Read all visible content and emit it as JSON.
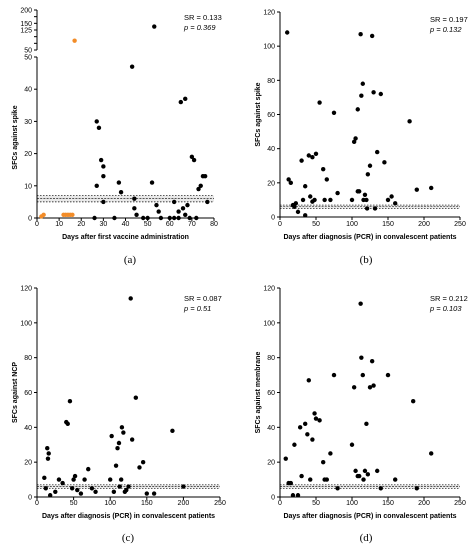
{
  "chart_data": [
    {
      "type": "scatter",
      "panel_label": "(a)",
      "xlabel": "Days after first vaccine administration",
      "ylabel": "SFCs against spike",
      "xlim": [
        0,
        80
      ],
      "xticks": [
        0,
        10,
        20,
        30,
        40,
        50,
        60,
        70,
        80
      ],
      "y_broken": true,
      "ylim_lower": [
        0,
        50
      ],
      "yticks_lower": [
        0,
        10,
        20,
        30,
        40,
        50
      ],
      "ylim_upper": [
        50,
        200
      ],
      "yticks_upper": [
        50,
        75,
        100,
        125,
        150,
        175,
        200
      ],
      "ytick_labels_upper": [
        "50",
        "",
        "",
        "125",
        "150",
        "",
        "200"
      ],
      "stats": {
        "sr": "SR = 0.133",
        "p": "p = 0.369"
      },
      "band": [
        5,
        7
      ],
      "band_line": 6,
      "series": [
        {
          "color": "#000000",
          "x": [
            27,
            28,
            29,
            30,
            30,
            30,
            27,
            26,
            37,
            38,
            43,
            44,
            44,
            48,
            50,
            52,
            53,
            54,
            55,
            56,
            60,
            62,
            64,
            65,
            66,
            67,
            67,
            68,
            69,
            70,
            71,
            72,
            73,
            74,
            75,
            76,
            77,
            35,
            45,
            62,
            64
          ],
          "y": [
            30,
            28,
            18,
            16,
            13,
            5,
            10,
            0,
            11,
            8,
            47,
            6,
            3,
            0,
            0,
            11,
            138,
            4,
            2,
            0,
            0,
            5,
            2,
            36,
            3,
            1,
            37,
            4,
            0,
            19,
            18,
            0,
            9,
            10,
            13,
            13,
            5,
            0,
            1,
            0,
            0
          ]
        },
        {
          "color": "#f28c28",
          "x": [
            2,
            3,
            12,
            13,
            14,
            15,
            16,
            17
          ],
          "y": [
            0.5,
            1,
            1,
            1,
            1,
            1,
            1,
            85
          ]
        }
      ]
    },
    {
      "type": "scatter",
      "panel_label": "(b)",
      "xlabel": "Days after diagnosis (PCR) in convalescent patients",
      "ylabel": "SFCs against spike",
      "xlim": [
        0,
        250
      ],
      "xticks": [
        0,
        50,
        100,
        150,
        200,
        250
      ],
      "ylim": [
        0,
        120
      ],
      "yticks": [
        0,
        20,
        40,
        60,
        80,
        100,
        120
      ],
      "stats": {
        "sr": "SR = 0.197",
        "p": "p = 0.132"
      },
      "band": [
        5,
        7
      ],
      "band_line": 6,
      "series": [
        {
          "color": "#000000",
          "x": [
            10,
            12,
            15,
            18,
            20,
            22,
            25,
            30,
            32,
            35,
            40,
            42,
            45,
            48,
            50,
            55,
            60,
            62,
            65,
            70,
            75,
            80,
            100,
            103,
            105,
            108,
            110,
            112,
            113,
            115,
            116,
            118,
            120,
            121,
            122,
            125,
            128,
            130,
            132,
            135,
            140,
            145,
            150,
            155,
            160,
            180,
            190,
            210,
            35,
            45,
            108
          ],
          "y": [
            108,
            22,
            20,
            7,
            6,
            8,
            3,
            33,
            10,
            1,
            36,
            12,
            35,
            10,
            37,
            67,
            28,
            10,
            22,
            10,
            61,
            14,
            10,
            44,
            46,
            15,
            15,
            107,
            71,
            78,
            10,
            13,
            10,
            5,
            25,
            30,
            106,
            73,
            5,
            38,
            72,
            32,
            10,
            12,
            8,
            56,
            16,
            17,
            18,
            9,
            63
          ]
        }
      ]
    },
    {
      "type": "scatter",
      "panel_label": "(c)",
      "xlabel": "Days after diagnosis (PCR) in convalescent patients",
      "ylabel": "SFCs against NCP",
      "xlim": [
        0,
        250
      ],
      "xticks": [
        0,
        50,
        100,
        150,
        200,
        250
      ],
      "ylim": [
        0,
        120
      ],
      "yticks": [
        0,
        20,
        40,
        60,
        80,
        100,
        120
      ],
      "stats": {
        "sr": "SR = 0.087",
        "p": "p = 0.51"
      },
      "band": [
        5,
        7
      ],
      "band_line": 6,
      "series": [
        {
          "color": "#000000",
          "x": [
            10,
            12,
            14,
            15,
            16,
            18,
            25,
            30,
            35,
            40,
            42,
            45,
            48,
            50,
            52,
            55,
            60,
            65,
            70,
            75,
            80,
            100,
            102,
            105,
            108,
            110,
            112,
            113,
            115,
            116,
            118,
            120,
            122,
            125,
            128,
            130,
            135,
            140,
            145,
            150,
            160,
            185,
            200
          ],
          "y": [
            11,
            5,
            28,
            22,
            25,
            1,
            3,
            10,
            8,
            43,
            42,
            55,
            5,
            10,
            12,
            4,
            2,
            10,
            16,
            5,
            3,
            10,
            35,
            3,
            18,
            28,
            31,
            6,
            10,
            40,
            37,
            3,
            4,
            6,
            114,
            33,
            57,
            17,
            20,
            2,
            2,
            38,
            6
          ]
        }
      ]
    },
    {
      "type": "scatter",
      "panel_label": "(d)",
      "xlabel": "Days after diagnosis (PCR) in convalescent patients",
      "ylabel": "SFCs against membrane",
      "xlim": [
        0,
        250
      ],
      "xticks": [
        0,
        50,
        100,
        150,
        200,
        250
      ],
      "ylim": [
        0,
        120
      ],
      "yticks": [
        0,
        20,
        40,
        60,
        80,
        100,
        120
      ],
      "stats": {
        "sr": "SR = 0.212",
        "p": "p = 0.103"
      },
      "band": [
        5,
        7
      ],
      "band_line": 6,
      "series": [
        {
          "color": "#000000",
          "x": [
            8,
            12,
            15,
            18,
            20,
            25,
            28,
            30,
            35,
            38,
            40,
            42,
            45,
            48,
            50,
            55,
            60,
            62,
            65,
            70,
            75,
            80,
            100,
            103,
            105,
            108,
            110,
            112,
            113,
            115,
            116,
            118,
            120,
            122,
            125,
            128,
            130,
            135,
            140,
            150,
            160,
            185,
            190,
            210
          ],
          "y": [
            22,
            8,
            8,
            1,
            30,
            1,
            40,
            12,
            42,
            36,
            67,
            10,
            33,
            48,
            45,
            44,
            20,
            10,
            10,
            25,
            70,
            5,
            30,
            63,
            15,
            12,
            12,
            111,
            80,
            70,
            10,
            15,
            42,
            13,
            63,
            78,
            64,
            15,
            5,
            70,
            10,
            55,
            5,
            25
          ]
        }
      ]
    }
  ]
}
